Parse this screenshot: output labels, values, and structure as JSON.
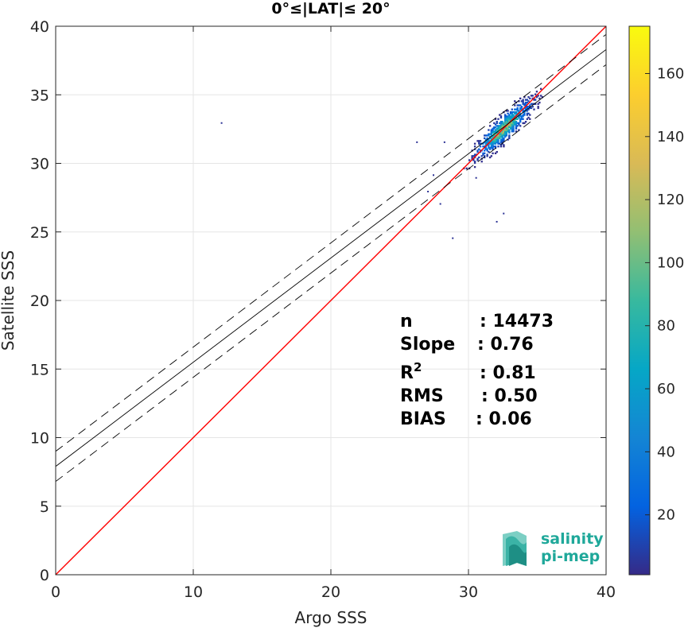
{
  "chart_data": {
    "type": "scatter",
    "subtype": "2d-density-histogram",
    "title": "0°≤|LAT|≤ 20°",
    "xlabel": "Argo SSS",
    "ylabel": "Satellite SSS",
    "xlim": [
      0,
      40
    ],
    "ylim": [
      0,
      40
    ],
    "xticks": [
      0,
      10,
      20,
      30,
      40
    ],
    "yticks": [
      0,
      5,
      10,
      15,
      20,
      25,
      30,
      35,
      40
    ],
    "grid": true,
    "colorbar": {
      "colormap": "parula",
      "range": [
        1,
        175
      ],
      "ticks": [
        20,
        40,
        60,
        80,
        100,
        120,
        140,
        160
      ],
      "colors": [
        "#352a87",
        "#0363e1",
        "#1485d4",
        "#06a7c6",
        "#38b99e",
        "#92bf73",
        "#d9ba56",
        "#fcce2e",
        "#f9fb0e"
      ]
    },
    "series": [
      {
        "name": "",
        "type": "line",
        "color": "#ff0000",
        "x": [
          0,
          40
        ],
        "y": [
          0,
          40
        ]
      },
      {
        "name": "",
        "type": "line",
        "color": "#000000",
        "x": [
          0,
          40
        ],
        "y": [
          7.9,
          38.3
        ]
      },
      {
        "name": "",
        "type": "line",
        "color": "#000000",
        "dash": true,
        "x": [
          0,
          40
        ],
        "y": [
          9.0,
          39.4
        ]
      },
      {
        "name": "",
        "type": "line",
        "color": "#000000",
        "dash": true,
        "x": [
          0,
          40
        ],
        "y": [
          6.8,
          37.2
        ]
      }
    ],
    "density": {
      "core_center": [
        32.5,
        32.5
      ],
      "core_x_range": [
        29.0,
        35.5
      ],
      "outliers": [
        [
          12.0,
          33.0
        ],
        [
          27.0,
          28.0
        ],
        [
          28.8,
          24.6
        ],
        [
          32.0,
          25.8
        ],
        [
          26.2,
          31.6
        ],
        [
          27.4,
          29.2
        ],
        [
          28.2,
          31.6
        ],
        [
          30.5,
          29.0
        ],
        [
          32.5,
          26.4
        ],
        [
          27.9,
          27.1
        ]
      ]
    },
    "annotations": [
      {
        "label": "n",
        "value": ": 14473"
      },
      {
        "label": "Slope",
        "value": ": 0.76"
      },
      {
        "label": "R",
        "sup": "2",
        "value": ": 0.81"
      },
      {
        "label": "RMS",
        "value": ": 0.50"
      },
      {
        "label": "BIAS",
        "value": ": 0.06"
      }
    ]
  },
  "logo": {
    "line1": "salinity",
    "line2": "pi-mep"
  },
  "colors": {
    "identity_line": "#ff0000",
    "fit_line": "#000000",
    "grid": "#e5e5e5",
    "axis": "#262626",
    "logo": "#1fa89a"
  }
}
